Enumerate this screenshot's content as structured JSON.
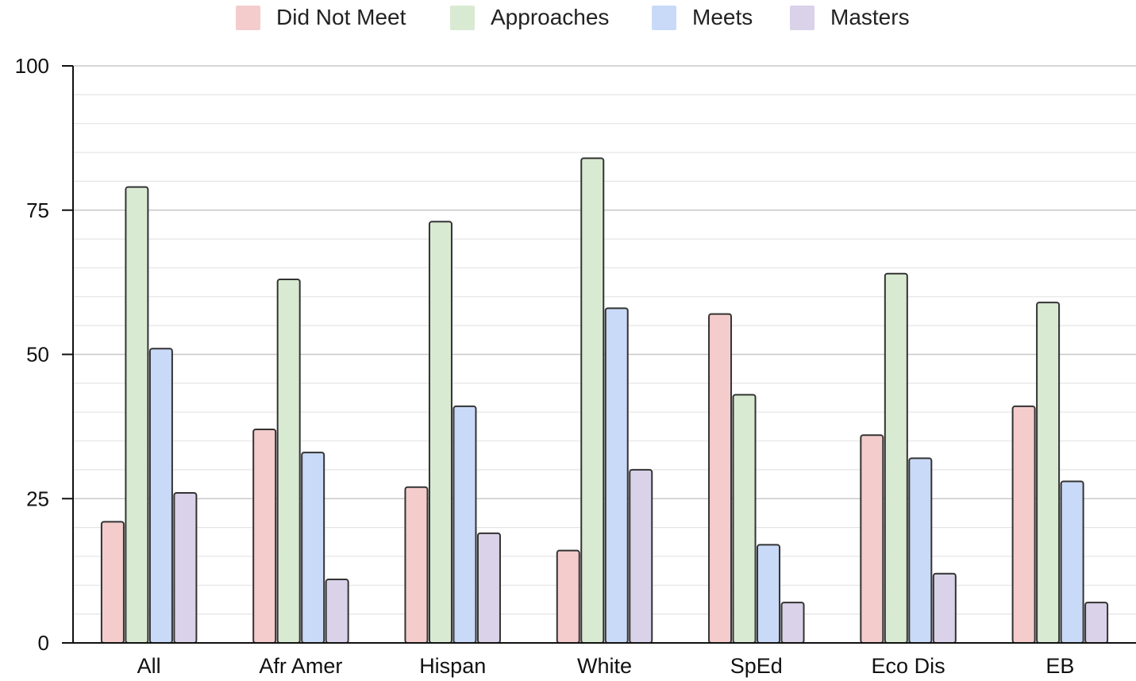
{
  "chart_data": {
    "type": "bar",
    "title": "",
    "xlabel": "",
    "ylabel": "",
    "categories": [
      "All",
      "Afr Amer",
      "Hispan",
      "White",
      "SpEd",
      "Eco Dis",
      "EB"
    ],
    "series": [
      {
        "name": "Did Not Meet",
        "color": "#f4cccc",
        "values": [
          21,
          37,
          27,
          16,
          57,
          36,
          41
        ]
      },
      {
        "name": "Approaches",
        "color": "#d9ead3",
        "values": [
          79,
          63,
          73,
          84,
          43,
          64,
          59
        ]
      },
      {
        "name": "Meets",
        "color": "#c9daf8",
        "values": [
          51,
          33,
          41,
          58,
          17,
          32,
          28
        ]
      },
      {
        "name": "Masters",
        "color": "#d9d2e9",
        "values": [
          26,
          11,
          19,
          30,
          7,
          12,
          7
        ]
      }
    ],
    "ylim": [
      0,
      100
    ],
    "yticks": [
      "0",
      "25",
      "50",
      "75",
      "100"
    ],
    "grid": true,
    "legend_position": "top"
  }
}
